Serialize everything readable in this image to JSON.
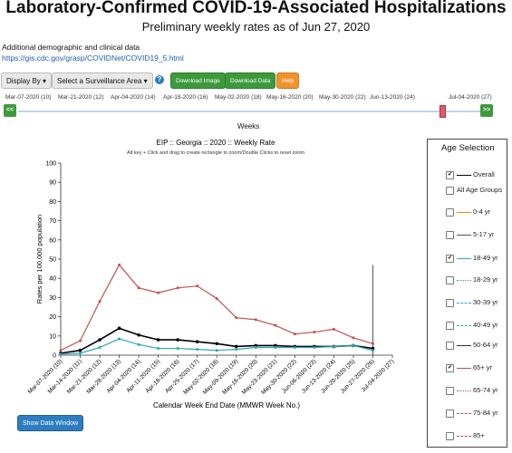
{
  "header": {
    "title": "Laboratory-Confirmed COVID-19-Associated Hospitalizations",
    "subtitle": "Preliminary weekly rates as of Jun 27, 2020",
    "additional_text": "Additional demographic and clinical data",
    "additional_link": "https://gis.cdc.gov/grasp/COVIDNet/COVID19_5.html"
  },
  "toolbar": {
    "display_by": "Display By",
    "surveillance_area": "Select a Surveillance Area",
    "download_image": "Download Image",
    "download_data": "Download Data",
    "help": "Help",
    "help_icon": "?"
  },
  "week_slider": {
    "ticks": [
      "Mar-07-2020 (10)",
      "Mar-21-2020 (12)",
      "Apr-04-2020 (14)",
      "Apr-18-2020 (16)",
      "May-02-2020 (18)",
      "May-16-2020 (20)",
      "May-30-2020 (22)",
      "Jun-13-2020 (24)",
      "Jul-04-2020 (27)"
    ],
    "prev": "<<",
    "next": ">>",
    "label": "Weeks"
  },
  "chart_data": {
    "type": "line",
    "title": "EIP :: Georgia :: 2020 :: Weekly Rate",
    "subtitle": "Alt key + Click and drag to create rectangle to zoom/Double Clicks to reset zoom",
    "xlabel": "Calendar Week End Date (MMWR Week No.)",
    "ylabel": "Rates per 100,000 population",
    "ylim": [
      0,
      100
    ],
    "yticks": [
      0,
      10,
      20,
      30,
      40,
      50,
      60,
      70,
      80,
      90,
      100
    ],
    "categories": [
      "Mar-07-2020 (10)",
      "Mar-14-2020 (11)",
      "Mar-21-2020 (12)",
      "Mar-28-2020 (13)",
      "Apr-04-2020 (14)",
      "Apr-11-2020 (15)",
      "Apr-18-2020 (16)",
      "Apr-25-2020 (17)",
      "May-02-2020 (18)",
      "May-09-2020 (19)",
      "May-16-2020 (20)",
      "May-23-2020 (21)",
      "May-30-2020 (22)",
      "Jun-06-2020 (23)",
      "Jun-13-2020 (24)",
      "Jun-20-2020 (25)",
      "Jun-27-2020 (26)",
      "Jul-04-2020 (27)"
    ],
    "series": [
      {
        "name": "Overall",
        "color": "#000000",
        "values": [
          1,
          2.5,
          8,
          14,
          10.5,
          8,
          8,
          7,
          6,
          4.5,
          5,
          5,
          4.5,
          4.5,
          4.5,
          5,
          3.5,
          null
        ]
      },
      {
        "name": "18-49 yr",
        "color": "#2aa8b8",
        "values": [
          0.5,
          1,
          4,
          8.5,
          5.5,
          3.5,
          3.5,
          3,
          2.5,
          3,
          4,
          4,
          4,
          4,
          4.5,
          5,
          2.5,
          null
        ]
      },
      {
        "name": "65+ yr",
        "color": "#c0504d",
        "values": [
          2.5,
          7.5,
          28,
          47,
          35,
          32.5,
          35,
          36,
          29.5,
          19.5,
          18.5,
          15.5,
          11,
          12,
          13.5,
          9,
          6,
          null
        ]
      }
    ],
    "marker_week_index": 16
  },
  "data_window_button": "Show Data Window",
  "legend": {
    "title": "Age Selection",
    "items": [
      {
        "label": "Overall",
        "checked": true,
        "color": "#000000",
        "style": "solid"
      },
      {
        "label": "All Age Groups",
        "checked": false,
        "color": "",
        "style": "none"
      },
      {
        "label": "0-4 yr",
        "checked": false,
        "color": "#d48a1f",
        "style": "solid"
      },
      {
        "label": "5-17 yr",
        "checked": false,
        "color": "#555555",
        "style": "solid"
      },
      {
        "label": "18-49 yr",
        "checked": true,
        "color": "#2aa8b8",
        "style": "solid"
      },
      {
        "label": "18-29 yr",
        "checked": false,
        "color": "#2aa8b8",
        "style": "dotted"
      },
      {
        "label": "30-39 yr",
        "checked": false,
        "color": "#2aa8b8",
        "style": "dashdot"
      },
      {
        "label": "40-49 yr",
        "checked": false,
        "color": "#2aa8b8",
        "style": "dashed"
      },
      {
        "label": "50-64 yr",
        "checked": false,
        "color": "#333333",
        "style": "solid"
      },
      {
        "label": "65+ yr",
        "checked": true,
        "color": "#c0504d",
        "style": "solid"
      },
      {
        "label": "65-74 yr",
        "checked": false,
        "color": "#c0504d",
        "style": "dotted"
      },
      {
        "label": "75-84 yr",
        "checked": false,
        "color": "#c0504d",
        "style": "dashdot"
      },
      {
        "label": "85+",
        "checked": false,
        "color": "#c0504d",
        "style": "dashed"
      }
    ]
  }
}
